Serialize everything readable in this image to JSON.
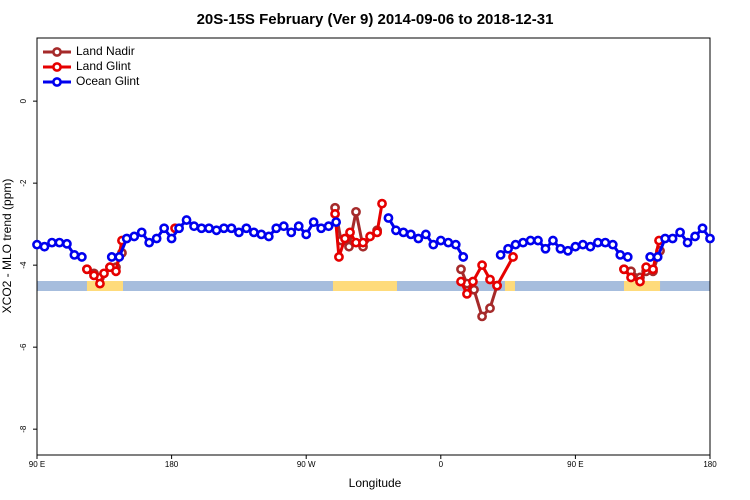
{
  "chart_data": {
    "type": "line",
    "title": "20S-15S February (Ver 9)   2014-09-06 to 2018-12-31",
    "xlabel": "Longitude",
    "ylabel": "XCO2 - MLO trend (ppm)",
    "xlim": [
      90,
      540
    ],
    "xticks": [
      {
        "value": 90,
        "label": "90 E"
      },
      {
        "value": 180,
        "label": "180"
      },
      {
        "value": 270,
        "label": "90 W"
      },
      {
        "value": 360,
        "label": "0"
      },
      {
        "value": 450,
        "label": "90 E"
      },
      {
        "value": 540,
        "label": "180"
      }
    ],
    "ylim": [
      -8.63,
      1.54
    ],
    "yticks": [
      0,
      -2,
      -4,
      -6,
      -8
    ],
    "legend": "top-left",
    "land_color": "#fedb7b",
    "ocean_color": "#a6bddd",
    "land_ranges": [
      [
        123.4,
        147.5
      ],
      [
        287.9,
        330.7
      ],
      [
        402.9,
        409.6
      ],
      [
        482.5,
        506.6
      ]
    ],
    "series": [
      {
        "name": "Land Nadir",
        "color": "#a52a2a",
        "x": [
          123.4,
          128.1,
          132.1,
          138.8,
          142.8,
          146.8,
          null,
          289.3,
          293.3,
          298.6,
          303.3,
          308.0,
          317.4,
          null,
          373.5,
          377.5,
          382.2,
          387.6,
          392.9,
          397.6,
          null,
          482.5,
          487.2,
          493.2,
          497.3,
          501.9,
          506.6
        ],
        "values": [
          -4.1,
          -4.2,
          -4.3,
          -4.05,
          -4.05,
          -3.7,
          null,
          -2.6,
          -3.4,
          -3.55,
          -2.7,
          -3.55,
          -3.15,
          null,
          -4.1,
          -4.45,
          -4.6,
          -5.25,
          -5.05,
          -4.5,
          null,
          -4.1,
          -4.15,
          -4.3,
          -4.15,
          -4.15,
          -3.65
        ]
      },
      {
        "name": "Land Glint",
        "color": "#e60000",
        "x": [
          123.4,
          128.1,
          132.1,
          134.8,
          138.8,
          142.8,
          146.8,
          null,
          182.3,
          null,
          289.3,
          291.9,
          295.9,
          299.3,
          303.3,
          308.0,
          312.7,
          317.4,
          320.7,
          null,
          373.5,
          377.5,
          381.5,
          387.6,
          392.9,
          397.6,
          408.3,
          null,
          482.5,
          487.2,
          493.2,
          497.3,
          501.9,
          505.9
        ],
        "values": [
          -4.1,
          -4.25,
          -4.45,
          -4.2,
          -4.05,
          -4.15,
          -3.4,
          null,
          -3.1,
          null,
          -2.75,
          -3.8,
          -3.35,
          -3.2,
          -3.45,
          -3.45,
          -3.3,
          -3.2,
          -2.5,
          null,
          -4.4,
          -4.7,
          -4.4,
          -4.0,
          -4.35,
          -4.5,
          -3.8,
          null,
          -4.1,
          -4.3,
          -4.4,
          -4.05,
          -4.1,
          -3.4
        ]
      },
      {
        "name": "Ocean Glint",
        "color": "#0000ee",
        "x": [
          90,
          95,
          100,
          105,
          110,
          115,
          120,
          125,
          130,
          135,
          140,
          145,
          150,
          155,
          160,
          165,
          170,
          175,
          180,
          185,
          190,
          195,
          200,
          205,
          210,
          215,
          220,
          225,
          230,
          235,
          240,
          245,
          250,
          255,
          260,
          265,
          270,
          275,
          280,
          285,
          290,
          295,
          300,
          305,
          310,
          315,
          320,
          325,
          330,
          335,
          340,
          345,
          350,
          355,
          360,
          365,
          370,
          375,
          380,
          385,
          390,
          395,
          400,
          405,
          410,
          415,
          420,
          425,
          430,
          435,
          440,
          445,
          450,
          455,
          460,
          465,
          470,
          475,
          480,
          485,
          490,
          495,
          500,
          505,
          510,
          515,
          520,
          525,
          530,
          535,
          540
        ],
        "values": [
          -3.5,
          -3.55,
          -3.45,
          -3.45,
          -3.48,
          -3.75,
          -3.8,
          null,
          null,
          null,
          -3.8,
          -3.8,
          -3.35,
          -3.3,
          -3.2,
          -3.45,
          -3.35,
          -3.1,
          -3.35,
          -3.1,
          -2.9,
          -3.05,
          -3.1,
          -3.1,
          -3.15,
          -3.1,
          -3.1,
          -3.2,
          -3.1,
          -3.2,
          -3.25,
          -3.3,
          -3.1,
          -3.05,
          -3.2,
          -3.05,
          -3.25,
          -2.95,
          -3.1,
          -3.05,
          -2.95,
          null,
          null,
          null,
          null,
          null,
          null,
          -2.85,
          -3.15,
          -3.2,
          -3.25,
          -3.35,
          -3.25,
          -3.5,
          -3.4,
          -3.45,
          -3.5,
          -3.8,
          null,
          null,
          null,
          null,
          -3.75,
          -3.6,
          -3.5,
          -3.45,
          -3.4,
          -3.4,
          -3.6,
          -3.4,
          -3.6,
          -3.65,
          -3.55,
          -3.5,
          -3.55,
          -3.45,
          -3.45,
          -3.5,
          -3.75,
          -3.8,
          null,
          null,
          -3.8,
          -3.8,
          -3.35,
          -3.35,
          -3.2,
          -3.45,
          -3.3,
          -3.1,
          -3.35
        ]
      }
    ]
  }
}
